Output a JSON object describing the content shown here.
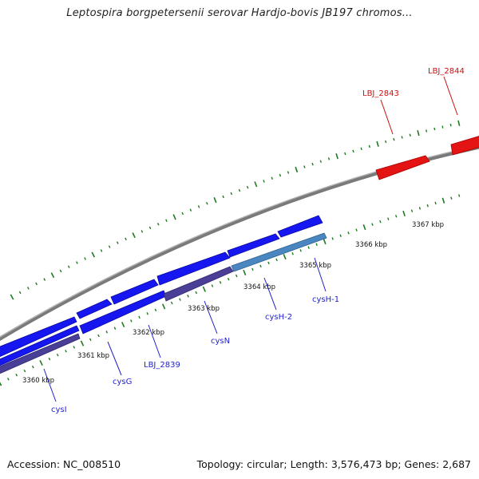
{
  "title": "Leptospira borgpetersenii serovar Hardjo-bovis JB197 chromos...",
  "footer": {
    "accession": "Accession: NC_008510",
    "topology": "Topology: circular; Length: 3,576,473 bp; Genes: 2,687"
  },
  "colors": {
    "backbone": "#8c8c8c",
    "tick": "#1f7a1f",
    "gene_forward": "#1616f0",
    "gene_reverse_dark": "#4a3f96",
    "gene_reverse_light": "#4a86c0",
    "gene_highlight": "#e41414",
    "label_blue": "#1f1fd0",
    "label_red": "#cc1010"
  },
  "scale_labels": [
    {
      "text": "3360 kbp"
    },
    {
      "text": "3361 kbp"
    },
    {
      "text": "3362 kbp"
    },
    {
      "text": "3363 kbp"
    },
    {
      "text": "3364 kbp"
    },
    {
      "text": "3365 kbp"
    },
    {
      "text": "3366 kbp"
    },
    {
      "text": "3367 kbp"
    }
  ],
  "gene_labels": [
    {
      "text": "cysI",
      "color": "blue"
    },
    {
      "text": "cysG",
      "color": "blue"
    },
    {
      "text": "LBJ_2839",
      "color": "blue"
    },
    {
      "text": "cysN",
      "color": "blue"
    },
    {
      "text": "cysH-2",
      "color": "blue"
    },
    {
      "text": "cysH-1",
      "color": "blue"
    },
    {
      "text": "LBJ_2843",
      "color": "red"
    },
    {
      "text": "LBJ_2844",
      "color": "red"
    }
  ]
}
